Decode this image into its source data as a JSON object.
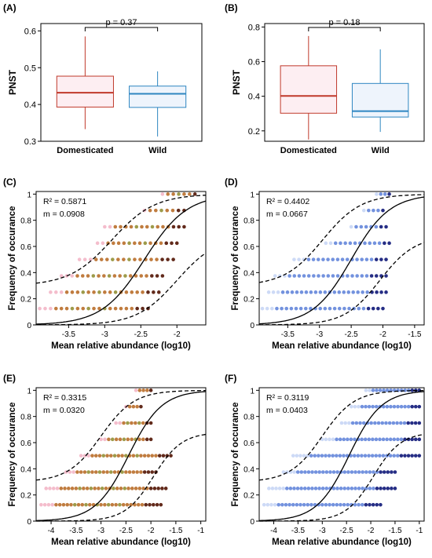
{
  "colors": {
    "domesticated": "#c0392b",
    "domesticated_dark": "#a0522d",
    "wild": "#2e86c1",
    "wild_point": "#5b7fd8",
    "wild_dark": "#1a237e",
    "fill_dom": "#fdeef2",
    "fill_wild": "#eef4fc",
    "fit_line": "#000000"
  },
  "chart_data": [
    {
      "panel": "(A)",
      "type": "box",
      "ylabel": "PNST",
      "ylim": [
        0.3,
        0.62
      ],
      "yticks": [
        0.3,
        0.4,
        0.5,
        0.6
      ],
      "pvalue": "p = 0.37",
      "categories": [
        "Domesticated",
        "Wild"
      ],
      "boxes": [
        {
          "group": "Domesticated",
          "min": 0.333,
          "q1": 0.393,
          "median": 0.432,
          "q3": 0.477,
          "max": 0.585
        },
        {
          "group": "Wild",
          "min": 0.313,
          "q1": 0.392,
          "median": 0.429,
          "q3": 0.45,
          "max": 0.49
        }
      ]
    },
    {
      "panel": "(B)",
      "type": "box",
      "ylabel": "PNST",
      "ylim": [
        0.14,
        0.82
      ],
      "yticks": [
        0.2,
        0.4,
        0.6,
        0.8
      ],
      "pvalue": "p = 0.18",
      "categories": [
        "Domesticated",
        "Wild"
      ],
      "boxes": [
        {
          "group": "Domesticated",
          "min": 0.15,
          "q1": 0.302,
          "median": 0.402,
          "q3": 0.576,
          "max": 0.748
        },
        {
          "group": "Wild",
          "min": 0.194,
          "q1": 0.28,
          "median": 0.314,
          "q3": 0.474,
          "max": 0.671
        }
      ]
    },
    {
      "panel": "(C)",
      "type": "scatter",
      "group": "Domesticated",
      "xlabel": "Mean relative abundance (log10)",
      "ylabel": "Frequency of occurance",
      "xlim": [
        -3.95,
        -1.6
      ],
      "xticks": [
        -3.5,
        -3.0,
        -2.5,
        -2.0
      ],
      "ylim": [
        0,
        1.02
      ],
      "yticks": [
        0,
        0.2,
        0.4,
        0.6,
        0.8,
        1
      ],
      "r2_label": "R² = 0.5871",
      "m_label": "m = 0.0908",
      "fit": {
        "mid": -2.45,
        "slope": 3.4
      },
      "ci": {
        "upper": {
          "mid": -2.9,
          "slope": 3.4
        },
        "lower": {
          "mid": -2.0,
          "slope": 3.6
        }
      },
      "levels": [
        0.125,
        0.25,
        0.375,
        0.5,
        0.625,
        0.75,
        0.875,
        1.0
      ],
      "point_ranges": [
        [
          -3.9,
          -2.4
        ],
        [
          -3.75,
          -2.25
        ],
        [
          -3.6,
          -2.2
        ],
        [
          -3.35,
          -2.05
        ],
        [
          -3.1,
          -2.0
        ],
        [
          -3.0,
          -1.9
        ],
        [
          -2.45,
          -1.9
        ],
        [
          -2.2,
          -1.75
        ]
      ]
    },
    {
      "panel": "(D)",
      "type": "scatter",
      "group": "Wild",
      "xlabel": "Mean relative abundance (log10)",
      "ylabel": "Frequency of occurance",
      "xlim": [
        -3.95,
        -1.35
      ],
      "xticks": [
        -3.5,
        -3.0,
        -2.5,
        -2.0,
        -1.5
      ],
      "ylim": [
        0,
        1.02
      ],
      "yticks": [
        0,
        0.2,
        0.4,
        0.6,
        0.8,
        1
      ],
      "r2_label": "R² = 0.4402",
      "m_label": "m = 0.0667",
      "fit": {
        "mid": -2.5,
        "slope": 3.3
      },
      "ci": {
        "upper": {
          "mid": -2.95,
          "slope": 3.3
        },
        "lower": {
          "mid": -2.05,
          "slope": 3.6
        }
      },
      "levels": [
        0.125,
        0.25,
        0.375,
        0.5,
        0.625,
        0.75,
        0.875,
        1.0
      ],
      "point_ranges": [
        [
          -3.9,
          -2.0
        ],
        [
          -3.8,
          -1.95
        ],
        [
          -3.7,
          -1.95
        ],
        [
          -3.4,
          -1.95
        ],
        [
          -2.9,
          -1.9
        ],
        [
          -2.5,
          -1.95
        ],
        [
          -2.3,
          -2.0
        ],
        [
          -2.1,
          -1.9
        ]
      ]
    },
    {
      "panel": "(E)",
      "type": "scatter",
      "group": "Domesticated",
      "xlabel": "Mean relative abundance (log10)",
      "ylabel": "Frequency of occurance",
      "xlim": [
        -4.3,
        -0.9
      ],
      "xticks": [
        -4.0,
        -3.5,
        -3.0,
        -2.5,
        -2.0,
        -1.5,
        -1.0
      ],
      "ylim": [
        0,
        1.02
      ],
      "yticks": [
        0,
        0.2,
        0.4,
        0.6,
        0.8,
        1
      ],
      "r2_label": "R² = 0.3315",
      "m_label": "m = 0.0320",
      "fit": {
        "mid": -2.45,
        "slope": 3.0
      },
      "ci": {
        "upper": {
          "mid": -3.0,
          "slope": 3.0
        },
        "lower": {
          "mid": -1.95,
          "slope": 3.5
        }
      },
      "levels": [
        0.125,
        0.25,
        0.375,
        0.5,
        0.625,
        0.75,
        0.875,
        1.0
      ],
      "point_ranges": [
        [
          -4.2,
          -1.8
        ],
        [
          -4.1,
          -1.7
        ],
        [
          -3.7,
          -1.9
        ],
        [
          -3.4,
          -1.6
        ],
        [
          -3.0,
          -2.0
        ],
        [
          -2.7,
          -2.0
        ],
        [
          -2.5,
          -2.2
        ],
        [
          -2.3,
          -2.0
        ]
      ]
    },
    {
      "panel": "(F)",
      "type": "scatter",
      "group": "Wild",
      "xlabel": "Mean relative abundance (log10)",
      "ylabel": "Frequency of occurance",
      "xlim": [
        -4.3,
        -0.9
      ],
      "xticks": [
        -4.0,
        -3.5,
        -3.0,
        -2.5,
        -2.0,
        -1.5,
        -1.0
      ],
      "ylim": [
        0,
        1.02
      ],
      "yticks": [
        0,
        0.2,
        0.4,
        0.6,
        0.8,
        1
      ],
      "r2_label": "R² = 0.3119",
      "m_label": "m = 0.0403",
      "fit": {
        "mid": -2.45,
        "slope": 3.0
      },
      "ci": {
        "upper": {
          "mid": -3.0,
          "slope": 3.0
        },
        "lower": {
          "mid": -1.95,
          "slope": 3.5
        }
      },
      "levels": [
        0.125,
        0.25,
        0.375,
        0.5,
        0.625,
        0.75,
        0.875,
        1.0
      ],
      "point_ranges": [
        [
          -4.2,
          -1.8
        ],
        [
          -4.1,
          -1.5
        ],
        [
          -3.8,
          -1.5
        ],
        [
          -3.6,
          -1.0
        ],
        [
          -3.0,
          -1.0
        ],
        [
          -2.6,
          -1.0
        ],
        [
          -2.4,
          -1.0
        ],
        [
          -2.1,
          -1.0
        ]
      ]
    }
  ]
}
